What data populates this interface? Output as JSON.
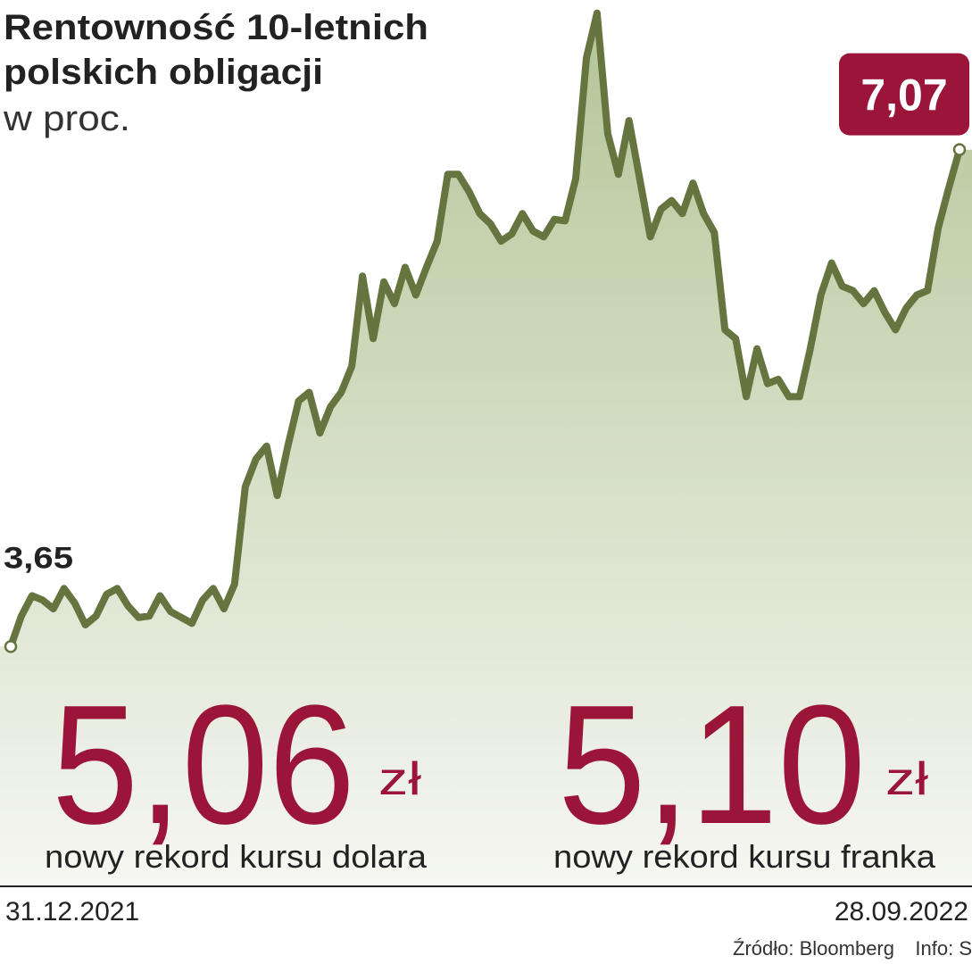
{
  "chart_data": {
    "type": "area",
    "title": [
      "Rentowność 10-letnich",
      "polskich obligacji"
    ],
    "subtitle": "w proc.",
    "categories": [
      "31.12.2021",
      null,
      null,
      null,
      null,
      null,
      null,
      null,
      null,
      null,
      null,
      null,
      null,
      null,
      null,
      null,
      null,
      null,
      null,
      null,
      null,
      null,
      null,
      null,
      null,
      null,
      null,
      null,
      null,
      null,
      null,
      null,
      null,
      null,
      null,
      null,
      null,
      null,
      null,
      null,
      null,
      null,
      null,
      null,
      null,
      null,
      null,
      null,
      null,
      null,
      null,
      null,
      null,
      null,
      null,
      null,
      null,
      null,
      null,
      null,
      null,
      null,
      null,
      null,
      null,
      null,
      null,
      null,
      null,
      null,
      null,
      null,
      null,
      null,
      null,
      null,
      null,
      null,
      null,
      null,
      null,
      null,
      null,
      null,
      null,
      null,
      null,
      null,
      null,
      "28.09.2022"
    ],
    "values": [
      3.65,
      3.86,
      4.0,
      3.97,
      3.91,
      4.05,
      3.95,
      3.8,
      3.86,
      4.01,
      4.05,
      3.93,
      3.85,
      3.86,
      4.0,
      3.89,
      3.85,
      3.81,
      3.97,
      4.05,
      3.91,
      4.08,
      4.75,
      4.94,
      5.03,
      4.69,
      5.03,
      5.34,
      5.4,
      5.12,
      5.3,
      5.4,
      5.58,
      6.2,
      5.77,
      6.16,
      6.01,
      6.26,
      6.07,
      6.26,
      6.44,
      6.9,
      6.9,
      6.78,
      6.63,
      6.56,
      6.44,
      6.49,
      6.63,
      6.51,
      6.47,
      6.59,
      6.58,
      6.87,
      7.7,
      8.01,
      7.18,
      6.9,
      7.27,
      6.87,
      6.47,
      6.66,
      6.72,
      6.63,
      6.84,
      6.63,
      6.5,
      5.83,
      5.77,
      5.37,
      5.7,
      5.46,
      5.49,
      5.37,
      5.37,
      5.7,
      6.07,
      6.29,
      6.13,
      6.1,
      6.01,
      6.1,
      5.95,
      5.83,
      5.98,
      6.07,
      6.1,
      6.53,
      6.81,
      7.07
    ],
    "value_labels": [
      "3,65",
      null,
      null,
      null,
      null,
      null,
      null,
      null,
      null,
      null,
      null,
      null,
      null,
      null,
      null,
      null,
      null,
      null,
      null,
      null,
      null,
      null,
      null,
      null,
      null,
      null,
      null,
      null,
      null,
      null,
      null,
      null,
      null,
      null,
      null,
      null,
      null,
      null,
      null,
      null,
      null,
      null,
      null,
      null,
      null,
      null,
      null,
      null,
      null,
      null,
      null,
      null,
      null,
      null,
      null,
      null,
      null,
      null,
      null,
      null,
      null,
      null,
      null,
      null,
      null,
      null,
      null,
      null,
      null,
      null,
      null,
      null,
      null,
      null,
      null,
      null,
      null,
      null,
      null,
      null,
      null,
      null,
      null,
      null,
      null,
      null,
      null,
      null,
      null,
      "7,07"
    ],
    "color": "#66753f",
    "ylim": [
      2,
      8.1
    ],
    "annotations": [
      {
        "value": "5,06",
        "unit": "zł",
        "text": "nowy rekord kursu dolara"
      },
      {
        "value": "5,10",
        "unit": "zł",
        "text": "nowy rekord kursu franka"
      }
    ],
    "source": "Źródło: Bloomberg",
    "credit": "Info: S"
  }
}
